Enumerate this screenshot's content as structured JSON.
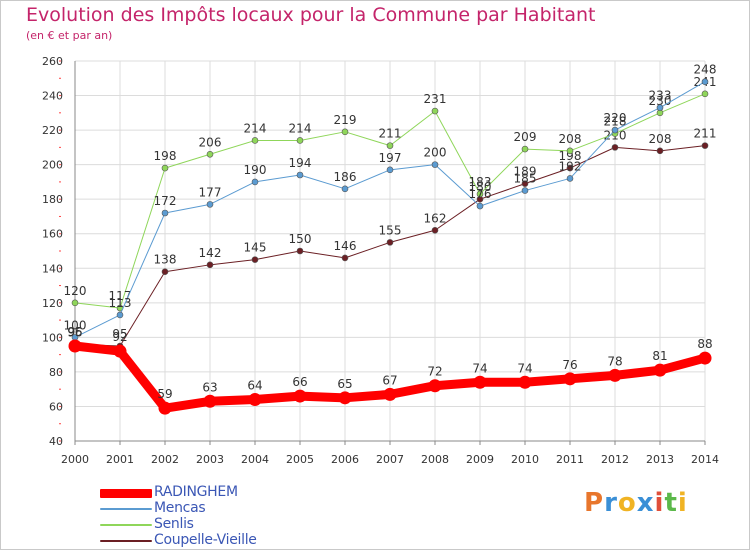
{
  "title": "Evolution des Impôts locaux pour la Commune par Habitant",
  "subtitle": "(en € et par an)",
  "logo": {
    "text": "Proxiti",
    "letters": [
      "P",
      "r",
      "o",
      "x",
      "i",
      "t",
      "i"
    ],
    "colors": [
      "#e8762c",
      "#3a8fd6",
      "#f0b323",
      "#3a8fd6",
      "#e04f3a",
      "#5bb84a",
      "#f0b323"
    ]
  },
  "colors": {
    "title": "#c4246a",
    "axis_text": "#333333",
    "grid": "#dcdcdc",
    "background": "#ffffff"
  },
  "chart_data": {
    "type": "line",
    "x": [
      2000,
      2001,
      2002,
      2003,
      2004,
      2005,
      2006,
      2007,
      2008,
      2009,
      2010,
      2011,
      2012,
      2013,
      2014
    ],
    "ylim": [
      40,
      260
    ],
    "yticks": [
      40,
      60,
      80,
      100,
      120,
      140,
      160,
      180,
      200,
      220,
      240,
      260
    ],
    "grid": true,
    "legend_position": "bottom-left",
    "series": [
      {
        "name": "Coupelle-Vieille",
        "color": "#6b1f24",
        "width": 1,
        "values": [
          96,
          95,
          138,
          142,
          145,
          150,
          146,
          155,
          162,
          180,
          189,
          198,
          210,
          208,
          211
        ],
        "labels": [
          "96",
          "95",
          "138",
          "142",
          "145",
          "150",
          "146",
          "155",
          "162",
          "180",
          "189",
          "198",
          "210",
          "208",
          "211"
        ]
      },
      {
        "name": "Senlis",
        "color": "#8fd65a",
        "width": 1,
        "values": [
          120,
          117,
          198,
          206,
          214,
          214,
          219,
          211,
          231,
          183,
          209,
          208,
          218,
          230,
          241
        ],
        "labels": [
          "120",
          "117",
          "198",
          "206",
          "214",
          "214",
          "219",
          "211",
          "231",
          "183",
          "209",
          "208",
          "218",
          "230",
          "241"
        ]
      },
      {
        "name": "Mencas",
        "color": "#5b9bd1",
        "width": 1,
        "values": [
          100,
          113,
          172,
          177,
          190,
          194,
          186,
          197,
          200,
          176,
          185,
          192,
          220,
          233,
          248
        ],
        "labels": [
          "100",
          "113",
          "172",
          "177",
          "190",
          "194",
          "186",
          "197",
          "200",
          "176",
          "185",
          "192",
          "220",
          "233",
          "248"
        ]
      },
      {
        "name": "RADINGHEM",
        "color": "#ff0000",
        "width": 9,
        "values": [
          95,
          92,
          59,
          63,
          64,
          66,
          65,
          67,
          72,
          74,
          74,
          76,
          78,
          81,
          88
        ],
        "labels": [
          "95",
          "92",
          "59",
          "63",
          "64",
          "66",
          "65",
          "67",
          "72",
          "74",
          "74",
          "76",
          "78",
          "81",
          "88"
        ]
      }
    ],
    "legend": [
      "RADINGHEM",
      "Mencas",
      "Senlis",
      "Coupelle-Vieille"
    ]
  }
}
